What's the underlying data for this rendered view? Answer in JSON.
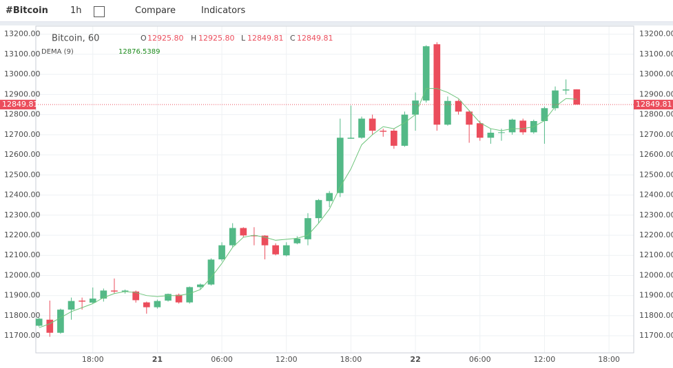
{
  "toolbar": {
    "symbol": "#Bitcoin",
    "interval": "1h",
    "compare": "Compare",
    "indicators": "Indicators"
  },
  "chart_data": {
    "type": "candlestick",
    "title": "Bitcoin, 60",
    "ohlc_labels": {
      "open_key": "O",
      "open": "12925.80",
      "high_key": "H",
      "high": "12925.80",
      "low_key": "L",
      "low": "12849.81",
      "close_key": "C",
      "close": "12849.81"
    },
    "last_price_label": "12849.81",
    "up_color": "#53b987",
    "down_color": "#eb4d5c",
    "x": [
      13,
      14,
      15,
      16,
      17,
      18,
      19,
      20,
      21,
      22,
      23,
      24,
      25,
      26,
      27,
      28,
      29,
      30,
      31,
      32,
      33,
      34,
      35,
      36,
      37,
      38,
      39,
      40,
      41,
      42,
      43,
      44,
      45,
      46,
      47,
      48,
      49,
      50,
      51,
      52,
      53,
      54,
      55,
      56,
      57,
      58,
      59,
      60,
      61,
      62,
      63
    ],
    "open": [
      11750,
      11780,
      11715,
      11830,
      11875,
      11865,
      11885,
      11925,
      11920,
      11920,
      11866,
      11842,
      11875,
      11904,
      11866,
      11942,
      11955,
      12080,
      12150,
      12236,
      12200,
      12198,
      12150,
      12100,
      12160,
      12180,
      12285,
      12370,
      12410,
      12680,
      12685,
      12780,
      12720,
      12720,
      12645,
      12800,
      12870,
      13150,
      12750,
      12868,
      12815,
      12757,
      12685,
      12710,
      12712,
      12770,
      12712,
      12768,
      12832,
      12920,
      12925.8
    ],
    "high": [
      11790,
      11875,
      11835,
      11890,
      11890,
      11940,
      11935,
      11985,
      11930,
      11925,
      11870,
      11880,
      11910,
      11910,
      11945,
      11960,
      12085,
      12165,
      12260,
      12240,
      12240,
      12200,
      12160,
      12165,
      12195,
      12310,
      12380,
      12420,
      12780,
      12845,
      12790,
      12800,
      12730,
      12730,
      12815,
      12910,
      13145,
      13160,
      12890,
      12875,
      12820,
      12770,
      12730,
      12730,
      12780,
      12780,
      12775,
      12840,
      12940,
      12975,
      12925.8
    ],
    "low": [
      11745,
      11695,
      11710,
      11780,
      11830,
      11860,
      11870,
      11910,
      11910,
      11865,
      11810,
      11835,
      11870,
      11860,
      11860,
      11930,
      11950,
      12070,
      12140,
      12190,
      12150,
      12080,
      12100,
      12095,
      12155,
      12150,
      12260,
      12340,
      12390,
      12680,
      12680,
      12700,
      12690,
      12630,
      12640,
      12720,
      12860,
      12720,
      12745,
      12800,
      12660,
      12670,
      12655,
      12670,
      12700,
      12700,
      12705,
      12655,
      12820,
      12900,
      12849.81
    ],
    "close": [
      11785,
      11715,
      11830,
      11873,
      11870,
      11885,
      11925,
      11920,
      11925,
      11877,
      11842,
      11873,
      11908,
      11866,
      11942,
      11955,
      12079,
      12150,
      12236,
      12199,
      12195,
      12150,
      12105,
      12150,
      12183,
      12285,
      12375,
      12410,
      12685,
      12685,
      12780,
      12720,
      12715,
      12645,
      12800,
      12870,
      13140,
      12750,
      12868,
      12815,
      12750,
      12685,
      12710,
      12712,
      12775,
      12712,
      12768,
      12832,
      12920,
      12925,
      12849.81
    ],
    "indicator": {
      "name": "DEMA (9)",
      "color": "#6cc47a",
      "values": [
        11740,
        11760,
        11790,
        11820,
        11840,
        11860,
        11890,
        11910,
        11920,
        11915,
        11900,
        11895,
        11900,
        11900,
        11910,
        11930,
        11990,
        12060,
        12140,
        12190,
        12200,
        12190,
        12175,
        12180,
        12185,
        12200,
        12260,
        12330,
        12440,
        12530,
        12650,
        12700,
        12740,
        12730,
        12760,
        12800,
        12930,
        12930,
        12910,
        12880,
        12820,
        12760,
        12730,
        12720,
        12730,
        12730,
        12740,
        12770,
        12840,
        12880,
        12876.5389
      ]
    },
    "xlim": [
      12.7,
      68.3
    ],
    "ylim": [
      11615,
      13240
    ],
    "xticks": [
      {
        "value": 18,
        "label": "18:00"
      },
      {
        "value": 24,
        "label": "21"
      },
      {
        "value": 30,
        "label": "06:00"
      },
      {
        "value": 36,
        "label": "12:00"
      },
      {
        "value": 42,
        "label": "18:00"
      },
      {
        "value": 48,
        "label": "22"
      },
      {
        "value": 54,
        "label": "06:00"
      },
      {
        "value": 60,
        "label": "12:00"
      },
      {
        "value": 66,
        "label": "18:00"
      }
    ],
    "yticks": [
      {
        "value": 11700,
        "label": "11700.00"
      },
      {
        "value": 11800,
        "label": "11800.00"
      },
      {
        "value": 11900,
        "label": "11900.00"
      },
      {
        "value": 12000,
        "label": "12000.00"
      },
      {
        "value": 12100,
        "label": "12100.00"
      },
      {
        "value": 12200,
        "label": "12200.00"
      },
      {
        "value": 12300,
        "label": "12300.00"
      },
      {
        "value": 12400,
        "label": "12400.00"
      },
      {
        "value": 12500,
        "label": "12500.00"
      },
      {
        "value": 12600,
        "label": "12600.00"
      },
      {
        "value": 12700,
        "label": "12700.00"
      },
      {
        "value": 12800,
        "label": "12800.00"
      },
      {
        "value": 12900,
        "label": "12900.00"
      },
      {
        "value": 13000,
        "label": "13000.00"
      },
      {
        "value": 13100,
        "label": "13100.00"
      },
      {
        "value": 13200,
        "label": "13200.00"
      }
    ],
    "grid": true
  }
}
